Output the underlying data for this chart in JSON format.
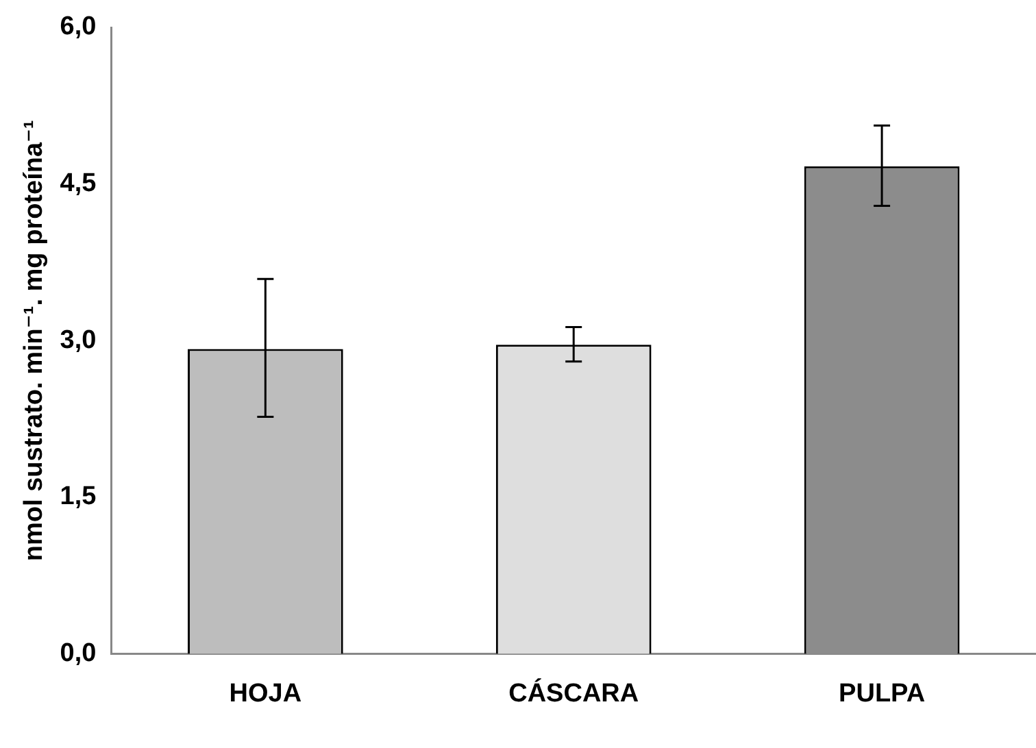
{
  "chart_data": {
    "type": "bar",
    "categories": [
      "HOJA",
      "CÁSCARA",
      "PULPA"
    ],
    "ylabel": "nmol sustrato. min⁻¹. mg proteína⁻¹",
    "values": [
      2.92,
      2.96,
      4.67
    ],
    "colors": [
      "#bdbdbd",
      "#dedede",
      "#8c8c8c"
    ],
    "errors": [
      [
        2.27,
        3.59
      ],
      [
        2.8,
        3.13
      ],
      [
        4.29,
        5.06
      ]
    ],
    "ylim": [
      0,
      6
    ],
    "yticks": [
      {
        "value": 0,
        "label": "0,0"
      },
      {
        "value": 1.5,
        "label": "1,5"
      },
      {
        "value": 3,
        "label": "3,0"
      },
      {
        "value": 4.5,
        "label": "4,5"
      },
      {
        "value": 6,
        "label": "6,0"
      }
    ],
    "grid": false,
    "legend": false
  }
}
